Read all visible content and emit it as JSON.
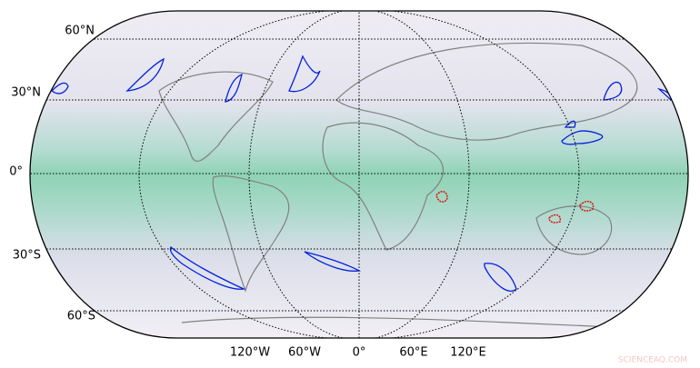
{
  "map": {
    "lat_labels": [
      "60°N",
      "30°N",
      "0°",
      "30°S",
      "60°S"
    ],
    "lon_labels": [
      "120°W",
      "60°W",
      "0°",
      "60°E",
      "120°E"
    ]
  },
  "watermark": "SCIENCEAQ.COM"
}
